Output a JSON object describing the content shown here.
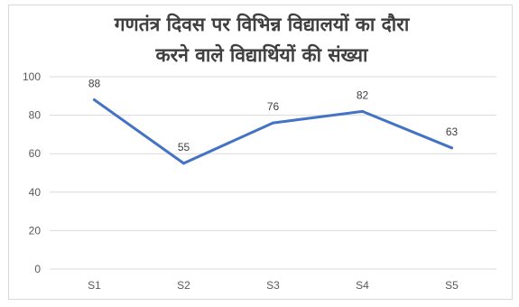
{
  "chart_data": {
    "type": "line",
    "title_lines": [
      "गणतंत्र दिवस पर विभिन्न विद्यालयों का दौरा",
      "करने वाले विद्यार्थियों की संख्या"
    ],
    "categories": [
      "S1",
      "S2",
      "S3",
      "S4",
      "S5"
    ],
    "series": [
      {
        "values": [
          88,
          55,
          76,
          82,
          63
        ]
      }
    ],
    "ylim": [
      0,
      100
    ],
    "yticks": [
      0,
      20,
      40,
      60,
      80,
      100
    ],
    "grid": true,
    "data_labels": true,
    "line_color": "#4472c4",
    "grid_color": "#d9d9d9"
  }
}
